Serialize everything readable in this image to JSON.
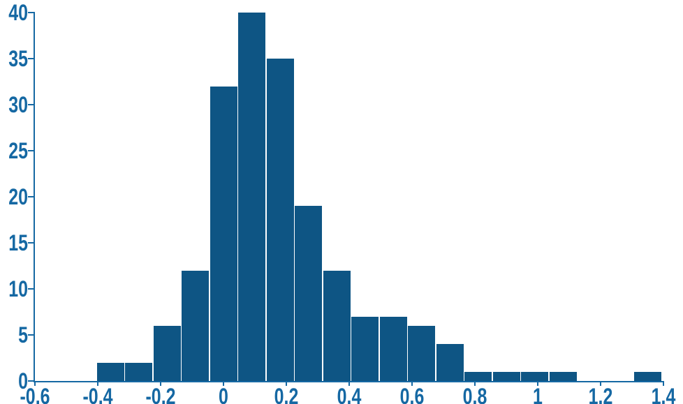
{
  "figure": {
    "background": "#ffffff",
    "bar_color": "#0e5584",
    "axis_color": "#1568a3",
    "separator_color": "#ffffff"
  },
  "chart_data": {
    "type": "bar",
    "subtype": "histogram",
    "title": "",
    "xlabel": "",
    "ylabel": "",
    "grid": false,
    "legend_position": "none",
    "xlim": [
      -0.6,
      1.4
    ],
    "ylim": [
      0,
      40
    ],
    "bins": {
      "start": -0.405,
      "width": 0.09,
      "edges": [
        -0.405,
        -0.315,
        -0.225,
        -0.135,
        -0.045,
        0.045,
        0.135,
        0.225,
        0.315,
        0.405,
        0.495,
        0.585,
        0.675,
        0.765,
        0.855,
        0.945,
        1.035,
        1.125,
        1.215,
        1.305,
        1.395
      ],
      "counts": [
        2,
        2,
        6,
        12,
        32,
        40,
        35,
        19,
        12,
        7,
        7,
        6,
        4,
        1,
        1,
        1,
        1,
        0,
        0,
        1
      ]
    },
    "x_ticks": [
      {
        "value": -0.6,
        "label": "-0.6"
      },
      {
        "value": -0.4,
        "label": "-0.4"
      },
      {
        "value": -0.2,
        "label": "-0.2"
      },
      {
        "value": 0,
        "label": "0"
      },
      {
        "value": 0.2,
        "label": "0.2"
      },
      {
        "value": 0.4,
        "label": "0.4"
      },
      {
        "value": 0.6,
        "label": "0.6"
      },
      {
        "value": 0.8,
        "label": "0.8"
      },
      {
        "value": 1,
        "label": "1"
      },
      {
        "value": 1.2,
        "label": "1.2"
      },
      {
        "value": 1.4,
        "label": "1.4"
      }
    ],
    "y_ticks": [
      {
        "value": 0,
        "label": "0"
      },
      {
        "value": 5,
        "label": "5"
      },
      {
        "value": 10,
        "label": "10"
      },
      {
        "value": 15,
        "label": "15"
      },
      {
        "value": 20,
        "label": "20"
      },
      {
        "value": 25,
        "label": "25"
      },
      {
        "value": 30,
        "label": "30"
      },
      {
        "value": 35,
        "label": "35"
      },
      {
        "value": 40,
        "label": "40"
      }
    ]
  }
}
